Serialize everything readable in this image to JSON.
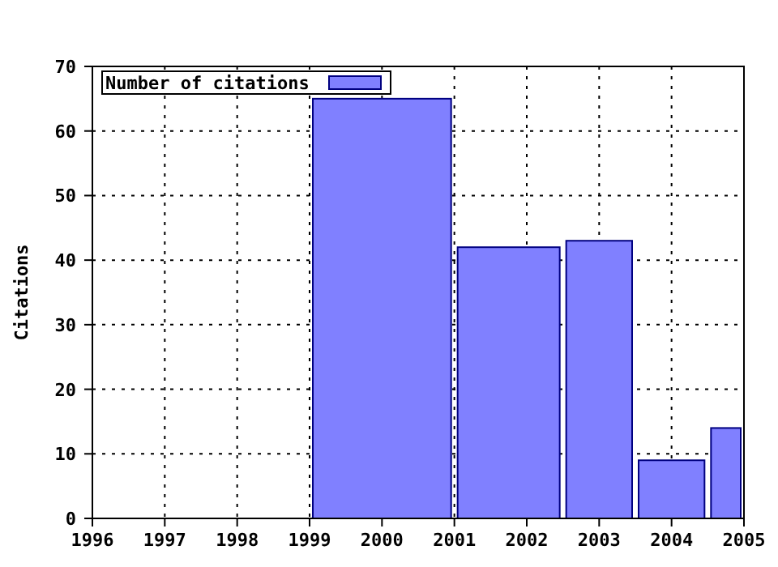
{
  "chart_data": {
    "type": "histogram",
    "ylabel": "Citations",
    "bins": [
      1999,
      2001,
      2002.5,
      2003.5,
      2004.5,
      2005
    ],
    "series": [
      {
        "name": "Number of citations",
        "color": "#8080ff",
        "values": [
          65,
          42,
          43,
          9,
          14
        ]
      }
    ],
    "xlim": [
      1996,
      2005
    ],
    "xticks": [
      1996,
      1997,
      1998,
      1999,
      2000,
      2001,
      2002,
      2003,
      2004,
      2005
    ],
    "ylim": [
      0,
      70
    ],
    "yticks": [
      0,
      10,
      20,
      30,
      40,
      50,
      60,
      70
    ],
    "grid": true,
    "legend": "top left"
  }
}
